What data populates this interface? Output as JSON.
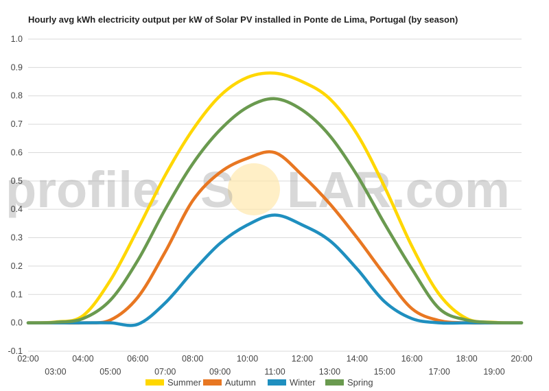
{
  "chart_data": {
    "type": "line",
    "title": "Hourly avg kWh electricity output per kW of Solar PV installed in Ponte de Lima, Portugal (by season)",
    "watermark": {
      "left": "profile",
      "right": "S",
      "tail": "LAR.com",
      "sun_color": "#ffe6a8"
    },
    "ylim": [
      -0.1,
      1.0
    ],
    "yticks": [
      -0.1,
      0.0,
      0.1,
      0.2,
      0.3,
      0.4,
      0.5,
      0.6,
      0.7,
      0.8,
      0.9,
      1.0
    ],
    "ytick_labels": [
      "-0.1",
      "0.0",
      "0.1",
      "0.2",
      "0.3",
      "0.4",
      "0.5",
      "0.6",
      "0.7",
      "0.8",
      "0.9",
      "1.0"
    ],
    "xlim": [
      2,
      20
    ],
    "xticks": [
      2,
      3,
      4,
      5,
      6,
      7,
      8,
      9,
      10,
      11,
      12,
      13,
      14,
      15,
      16,
      17,
      18,
      19,
      20
    ],
    "xtick_labels": [
      "02:00",
      "03:00",
      "04:00",
      "05:00",
      "06:00",
      "07:00",
      "08:00",
      "09:00",
      "10:00",
      "11:00",
      "12:00",
      "13:00",
      "14:00",
      "15:00",
      "16:00",
      "17:00",
      "18:00",
      "19:00",
      "20:00"
    ],
    "grid": true,
    "legend_position": "bottom",
    "x": [
      2,
      3,
      4,
      5,
      6,
      7,
      8,
      9,
      10,
      11,
      12,
      13,
      14,
      15,
      16,
      17,
      18,
      19,
      20
    ],
    "series": [
      {
        "name": "Summer",
        "color": "#ffd700",
        "values": [
          0.0,
          0.003,
          0.025,
          0.15,
          0.33,
          0.52,
          0.68,
          0.8,
          0.865,
          0.88,
          0.85,
          0.79,
          0.665,
          0.48,
          0.27,
          0.1,
          0.015,
          0.002,
          0.0
        ]
      },
      {
        "name": "Autumn",
        "color": "#e87722",
        "values": [
          0.0,
          0.0,
          0.0,
          0.01,
          0.09,
          0.25,
          0.43,
          0.53,
          0.58,
          0.6,
          0.52,
          0.42,
          0.3,
          0.17,
          0.05,
          0.008,
          0.0,
          0.0,
          0.0
        ]
      },
      {
        "name": "Winter",
        "color": "#1f8fbf",
        "values": [
          0.0,
          0.0,
          0.0,
          0.0,
          -0.005,
          0.07,
          0.18,
          0.28,
          0.345,
          0.38,
          0.345,
          0.29,
          0.19,
          0.075,
          0.015,
          0.0,
          0.0,
          0.0,
          0.0
        ]
      },
      {
        "name": "Spring",
        "color": "#6a9a4f",
        "values": [
          0.0,
          0.002,
          0.015,
          0.08,
          0.22,
          0.4,
          0.56,
          0.68,
          0.76,
          0.79,
          0.75,
          0.66,
          0.52,
          0.35,
          0.19,
          0.05,
          0.01,
          0.001,
          0.0
        ]
      }
    ]
  }
}
